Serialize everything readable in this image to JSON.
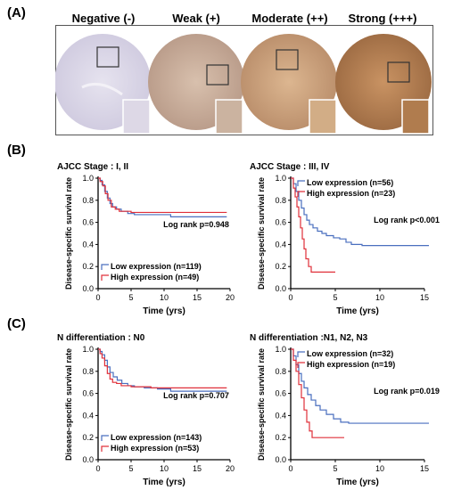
{
  "panel_labels": {
    "a": "(A)",
    "b": "(B)",
    "c": "(C)"
  },
  "ihc": {
    "titles": [
      "Negative (-)",
      "Weak (+)",
      "Moderate (++)",
      "Strong (+++)"
    ],
    "colors": {
      "negative": "#d9d5e6",
      "weak": "#c9ac98",
      "moderate": "#cfa57a",
      "strong": "#b98150"
    }
  },
  "colors": {
    "low": "#4a6fbf",
    "high": "#e0303a"
  },
  "chart_data": [
    {
      "id": "B-left",
      "type": "line",
      "title": "AJCC Stage : I, II",
      "xlabel": "Time (yrs)",
      "ylabel": "Disease-specific survival rate",
      "xlim": [
        0,
        20
      ],
      "ylim": [
        0,
        1.0
      ],
      "xticks": [
        "0",
        "5",
        "10",
        "15",
        "20"
      ],
      "yticks": [
        "0.0",
        "0.2",
        "0.4",
        "0.6",
        "0.8",
        "1.0"
      ],
      "annotation": "Log rank p=0.948",
      "legend_position": "bottom-left",
      "series": [
        {
          "name": "Low expression (n=119)",
          "color_key": "low",
          "x": [
            0,
            0.3,
            0.6,
            1.0,
            1.4,
            1.8,
            2.2,
            2.8,
            3.5,
            4.5,
            5.5,
            9.0,
            11.0,
            15.0,
            19.5
          ],
          "y": [
            1.0,
            0.98,
            0.94,
            0.88,
            0.82,
            0.77,
            0.74,
            0.72,
            0.7,
            0.68,
            0.67,
            0.67,
            0.65,
            0.65,
            0.65
          ]
        },
        {
          "name": "High expression (n=49)",
          "color_key": "high",
          "x": [
            0,
            0.3,
            0.7,
            1.1,
            1.5,
            2.0,
            2.6,
            3.2,
            4.2,
            5.0,
            7.0,
            19.5
          ],
          "y": [
            1.0,
            0.97,
            0.93,
            0.86,
            0.8,
            0.74,
            0.72,
            0.7,
            0.7,
            0.69,
            0.69,
            0.69
          ]
        }
      ]
    },
    {
      "id": "B-right",
      "type": "line",
      "title": "AJCC Stage : III, IV",
      "xlabel": "Time (yrs)",
      "ylabel": "Disease-specific survival rate",
      "xlim": [
        0,
        15
      ],
      "ylim": [
        0,
        1.0
      ],
      "xticks": [
        "0",
        "5",
        "10",
        "15"
      ],
      "yticks": [
        "0.0",
        "0.2",
        "0.4",
        "0.6",
        "0.8",
        "1.0"
      ],
      "annotation": "Log rank p<0.001",
      "legend_position": "top-right",
      "series": [
        {
          "name": "Low expression (n=56)",
          "color_key": "low",
          "x": [
            0,
            0.3,
            0.6,
            0.9,
            1.2,
            1.5,
            1.8,
            2.1,
            2.5,
            3.0,
            3.5,
            4.0,
            4.8,
            5.5,
            6.2,
            6.8,
            8.0,
            10.0,
            15.5
          ],
          "y": [
            1.0,
            0.95,
            0.88,
            0.8,
            0.73,
            0.67,
            0.62,
            0.58,
            0.55,
            0.52,
            0.5,
            0.48,
            0.46,
            0.45,
            0.42,
            0.4,
            0.39,
            0.39,
            0.39
          ]
        },
        {
          "name": "High expression (n=23)",
          "color_key": "high",
          "x": [
            0,
            0.3,
            0.5,
            0.7,
            0.9,
            1.1,
            1.3,
            1.5,
            1.7,
            2.0,
            2.3,
            4.0,
            5.0
          ],
          "y": [
            1.0,
            0.91,
            0.83,
            0.74,
            0.65,
            0.55,
            0.45,
            0.36,
            0.27,
            0.2,
            0.15,
            0.15,
            0.15
          ]
        }
      ]
    },
    {
      "id": "C-left",
      "type": "line",
      "title": "N differentiation : N0",
      "xlabel": "Time (yrs)",
      "ylabel": "Disease-specific survival rate",
      "xlim": [
        0,
        20
      ],
      "ylim": [
        0,
        1.0
      ],
      "xticks": [
        "0",
        "5",
        "10",
        "15",
        "20"
      ],
      "yticks": [
        "0.0",
        "0.2",
        "0.4",
        "0.6",
        "0.8",
        "1.0"
      ],
      "annotation": "Log rank p=0.707",
      "legend_position": "bottom-left",
      "series": [
        {
          "name": "Low expression (n=143)",
          "color_key": "low",
          "x": [
            0,
            0.3,
            0.6,
            1.0,
            1.4,
            1.8,
            2.3,
            2.9,
            3.6,
            4.5,
            5.5,
            7.0,
            9.0,
            11.0,
            15.0,
            19.5
          ],
          "y": [
            1.0,
            0.98,
            0.95,
            0.9,
            0.84,
            0.79,
            0.75,
            0.72,
            0.69,
            0.67,
            0.66,
            0.65,
            0.64,
            0.62,
            0.62,
            0.62
          ]
        },
        {
          "name": "High expression (n=53)",
          "color_key": "high",
          "x": [
            0,
            0.3,
            0.6,
            1.0,
            1.4,
            1.8,
            2.2,
            2.8,
            3.5,
            5.0,
            8.0,
            19.5
          ],
          "y": [
            1.0,
            0.96,
            0.92,
            0.85,
            0.78,
            0.73,
            0.7,
            0.69,
            0.67,
            0.66,
            0.65,
            0.65
          ]
        }
      ]
    },
    {
      "id": "C-right",
      "type": "line",
      "title": "N differentiation :N1, N2, N3",
      "xlabel": "Time (yrs)",
      "ylabel": "Disease-specific survival rate",
      "xlim": [
        0,
        15
      ],
      "ylim": [
        0,
        1.0
      ],
      "xticks": [
        "0",
        "5",
        "10",
        "15"
      ],
      "yticks": [
        "0.0",
        "0.2",
        "0.4",
        "0.6",
        "0.8",
        "1.0"
      ],
      "annotation": "Log rank p=0.019",
      "legend_position": "top-right",
      "series": [
        {
          "name": "Low expression (n=32)",
          "color_key": "low",
          "x": [
            0,
            0.3,
            0.6,
            0.9,
            1.2,
            1.5,
            1.9,
            2.3,
            2.8,
            3.3,
            4.0,
            4.8,
            5.6,
            6.5,
            15.5
          ],
          "y": [
            1.0,
            0.94,
            0.86,
            0.78,
            0.71,
            0.65,
            0.59,
            0.54,
            0.49,
            0.45,
            0.41,
            0.37,
            0.34,
            0.33,
            0.33
          ]
        },
        {
          "name": "High expression (n=19)",
          "color_key": "high",
          "x": [
            0,
            0.3,
            0.6,
            0.9,
            1.2,
            1.5,
            1.8,
            2.1,
            2.4,
            6.0
          ],
          "y": [
            1.0,
            0.9,
            0.8,
            0.68,
            0.56,
            0.45,
            0.34,
            0.26,
            0.2,
            0.2
          ]
        }
      ]
    }
  ]
}
